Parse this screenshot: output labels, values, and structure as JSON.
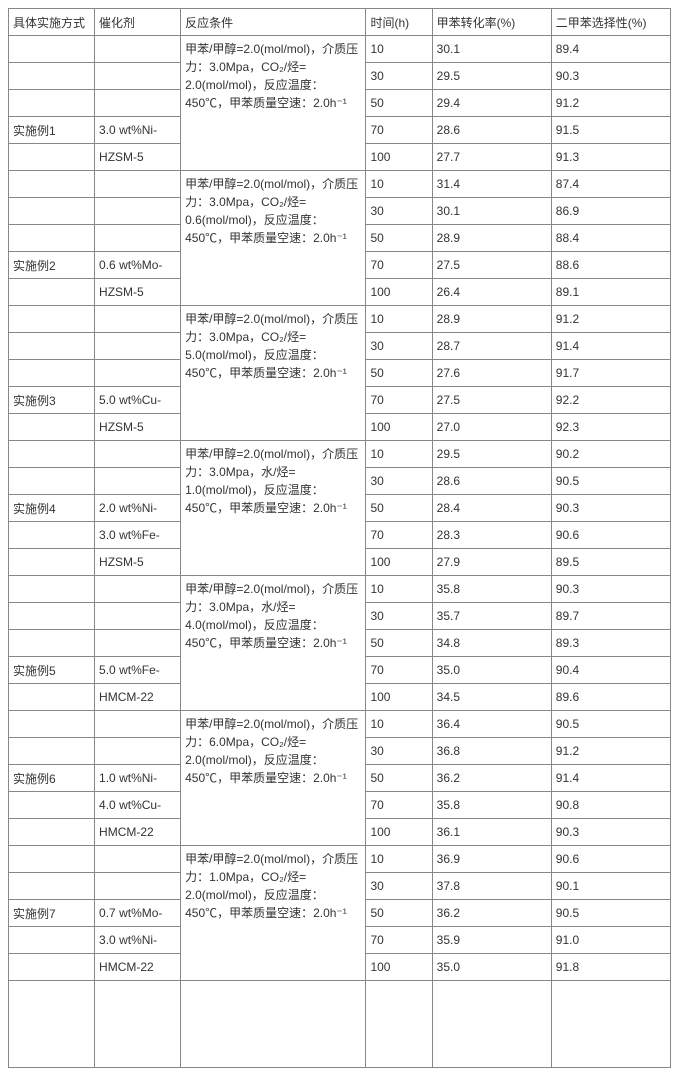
{
  "headers": {
    "c1": "具体实施方式",
    "c2": "催化剂",
    "c3": "反应条件",
    "c4": "时间(h)",
    "c5": "甲苯转化率(%)",
    "c6": "二甲苯选择性(%)"
  },
  "examples": [
    {
      "name": "实施例1",
      "catalyst": [
        "3.0 wt%Ni-",
        "HZSM-5"
      ],
      "conditions": "甲苯/甲醇=2.0(mol/mol)，介质压力：3.0Mpa，CO₂/烃= 2.0(mol/mol)，反应温度：450℃，甲苯质量空速：2.0h⁻¹",
      "rows": [
        {
          "t": "10",
          "conv": "30.1",
          "sel": "89.4"
        },
        {
          "t": "30",
          "conv": "29.5",
          "sel": "90.3"
        },
        {
          "t": "50",
          "conv": "29.4",
          "sel": "91.2"
        },
        {
          "t": "70",
          "conv": "28.6",
          "sel": "91.5"
        },
        {
          "t": "100",
          "conv": "27.7",
          "sel": "91.3"
        }
      ]
    },
    {
      "name": "实施例2",
      "catalyst": [
        "0.6 wt%Mo-",
        "HZSM-5"
      ],
      "conditions": "甲苯/甲醇=2.0(mol/mol)，介质压力：3.0Mpa，CO₂/烃= 0.6(mol/mol)，反应温度：450℃，甲苯质量空速：2.0h⁻¹",
      "rows": [
        {
          "t": "10",
          "conv": "31.4",
          "sel": "87.4"
        },
        {
          "t": "30",
          "conv": "30.1",
          "sel": "86.9"
        },
        {
          "t": "50",
          "conv": "28.9",
          "sel": "88.4"
        },
        {
          "t": "70",
          "conv": "27.5",
          "sel": "88.6"
        },
        {
          "t": "100",
          "conv": "26.4",
          "sel": "89.1"
        }
      ]
    },
    {
      "name": "实施例3",
      "catalyst": [
        "5.0 wt%Cu-",
        "HZSM-5"
      ],
      "conditions": "甲苯/甲醇=2.0(mol/mol)，介质压力：3.0Mpa，CO₂/烃= 5.0(mol/mol)，反应温度：450℃，甲苯质量空速：2.0h⁻¹",
      "rows": [
        {
          "t": "10",
          "conv": "28.9",
          "sel": "91.2"
        },
        {
          "t": "30",
          "conv": "28.7",
          "sel": "91.4"
        },
        {
          "t": "50",
          "conv": "27.6",
          "sel": "91.7"
        },
        {
          "t": "70",
          "conv": "27.5",
          "sel": "92.2"
        },
        {
          "t": "100",
          "conv": "27.0",
          "sel": "92.3"
        }
      ]
    },
    {
      "name": "实施例4",
      "catalyst": [
        "2.0 wt%Ni-",
        "3.0 wt%Fe-",
        "HZSM-5"
      ],
      "conditions": "甲苯/甲醇=2.0(mol/mol)，介质压力：3.0Mpa，水/烃= 1.0(mol/mol)，反应温度：450℃，甲苯质量空速：2.0h⁻¹",
      "rows": [
        {
          "t": "10",
          "conv": "29.5",
          "sel": "90.2"
        },
        {
          "t": "30",
          "conv": "28.6",
          "sel": "90.5"
        },
        {
          "t": "50",
          "conv": "28.4",
          "sel": "90.3"
        },
        {
          "t": "70",
          "conv": "28.3",
          "sel": "90.6"
        },
        {
          "t": "100",
          "conv": "27.9",
          "sel": "89.5"
        }
      ]
    },
    {
      "name": "实施例5",
      "catalyst": [
        "5.0 wt%Fe-",
        "HMCM-22"
      ],
      "conditions": "甲苯/甲醇=2.0(mol/mol)，介质压力：3.0Mpa，水/烃= 4.0(mol/mol)，反应温度：450℃，甲苯质量空速：2.0h⁻¹",
      "rows": [
        {
          "t": "10",
          "conv": "35.8",
          "sel": "90.3"
        },
        {
          "t": "30",
          "conv": "35.7",
          "sel": "89.7"
        },
        {
          "t": "50",
          "conv": "34.8",
          "sel": "89.3"
        },
        {
          "t": "70",
          "conv": "35.0",
          "sel": "90.4"
        },
        {
          "t": "100",
          "conv": "34.5",
          "sel": "89.6"
        }
      ]
    },
    {
      "name": "实施例6",
      "catalyst": [
        "1.0 wt%Ni-",
        "4.0 wt%Cu-",
        "HMCM-22"
      ],
      "conditions": "甲苯/甲醇=2.0(mol/mol)，介质压力：6.0Mpa，CO₂/烃= 2.0(mol/mol)，反应温度：450℃，甲苯质量空速：2.0h⁻¹",
      "rows": [
        {
          "t": "10",
          "conv": "36.4",
          "sel": "90.5"
        },
        {
          "t": "30",
          "conv": "36.8",
          "sel": "91.2"
        },
        {
          "t": "50",
          "conv": "36.2",
          "sel": "91.4"
        },
        {
          "t": "70",
          "conv": "35.8",
          "sel": "90.8"
        },
        {
          "t": "100",
          "conv": "36.1",
          "sel": "90.3"
        }
      ]
    },
    {
      "name": "实施例7",
      "catalyst": [
        "0.7 wt%Mo-",
        "3.0 wt%Ni-",
        "HMCM-22"
      ],
      "conditions": "甲苯/甲醇=2.0(mol/mol)，介质压力：1.0Mpa，CO₂/烃= 2.0(mol/mol)，反应温度：450℃，甲苯质量空速：2.0h⁻¹",
      "rows": [
        {
          "t": "10",
          "conv": "36.9",
          "sel": "90.6"
        },
        {
          "t": "30",
          "conv": "37.8",
          "sel": "90.1"
        },
        {
          "t": "50",
          "conv": "36.2",
          "sel": "90.5"
        },
        {
          "t": "70",
          "conv": "35.9",
          "sel": "91.0"
        },
        {
          "t": "100",
          "conv": "35.0",
          "sel": "91.8"
        }
      ]
    }
  ],
  "style": {
    "border_color": "#888888",
    "bg_color": "#ffffff",
    "text_color": "#333333",
    "fontsize": 12
  }
}
